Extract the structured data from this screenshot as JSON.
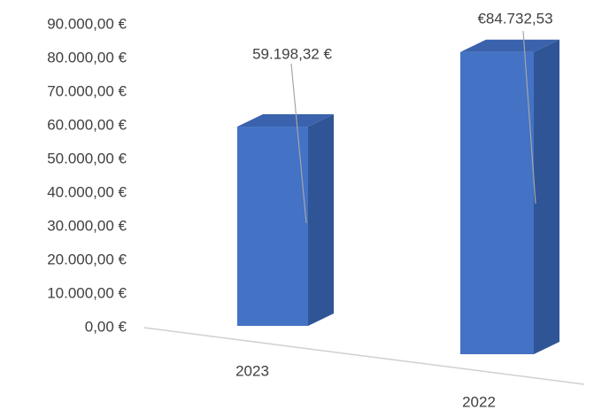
{
  "chart_data": {
    "type": "bar3d",
    "categories": [
      "2023",
      "2022"
    ],
    "values": [
      59198.32,
      84732.53
    ],
    "value_labels": [
      "59.198,32 €",
      "€84.732,53"
    ],
    "color": "#4472c4",
    "ylim": [
      0,
      90000
    ],
    "yticks": [
      {
        "value": 0,
        "label": "0,00 €"
      },
      {
        "value": 10000,
        "label": "10.000,00 €"
      },
      {
        "value": 20000,
        "label": "20.000,00 €"
      },
      {
        "value": 30000,
        "label": "30.000,00 €"
      },
      {
        "value": 40000,
        "label": "40.000,00 €"
      },
      {
        "value": 50000,
        "label": "50.000,00 €"
      },
      {
        "value": 60000,
        "label": "60.000,00 €"
      },
      {
        "value": 70000,
        "label": "70.000,00 €"
      },
      {
        "value": 80000,
        "label": "80.000,00 €"
      },
      {
        "value": 90000,
        "label": "90.000,00 €"
      }
    ],
    "grid": false
  }
}
